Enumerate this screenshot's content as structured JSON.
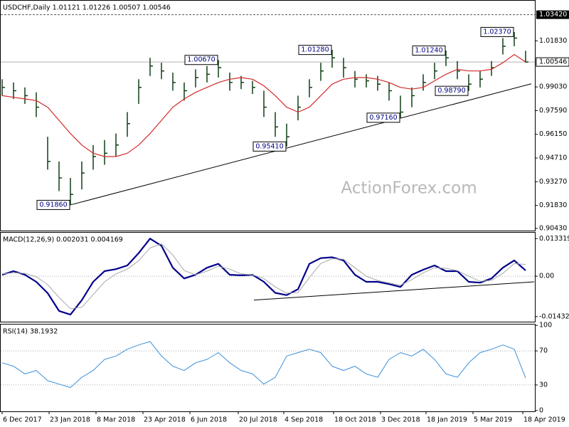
{
  "chart_data": [
    {
      "type": "hlc",
      "title": "USDCHF,Daily 1.01121 1.01226 1.00507 1.00546",
      "watermark": "ActionForex.com",
      "color": "#0f3f14",
      "x": [
        0,
        8,
        16,
        24,
        32,
        40,
        48,
        56,
        64,
        72,
        80,
        88,
        96,
        104,
        112,
        120,
        128,
        136,
        144,
        152,
        160,
        168,
        176,
        184,
        192,
        200,
        208,
        216,
        224,
        232,
        240,
        248,
        256,
        264,
        272,
        280,
        288,
        296,
        304,
        312,
        320,
        328,
        336,
        344,
        352,
        360,
        368
      ],
      "high": [
        0.995,
        0.993,
        0.99,
        0.987,
        0.96,
        0.945,
        0.935,
        0.945,
        0.955,
        0.958,
        0.962,
        0.975,
        0.995,
        1.008,
        1.005,
        0.999,
        0.993,
        1.001,
        1.003,
        1.0067,
        0.999,
        0.997,
        0.994,
        0.988,
        0.975,
        0.968,
        0.985,
        0.995,
        1.005,
        1.0128,
        1.008,
        1.0,
        0.998,
        0.997,
        0.993,
        0.985,
        0.99,
        0.998,
        1.005,
        1.0124,
        1.006,
        0.998,
        1.0,
        1.006,
        1.02,
        1.0237,
        1.01226
      ],
      "low": [
        0.985,
        0.983,
        0.98,
        0.972,
        0.94,
        0.927,
        0.9186,
        0.928,
        0.94,
        0.943,
        0.948,
        0.96,
        0.98,
        0.997,
        0.995,
        0.988,
        0.982,
        0.99,
        0.993,
        0.996,
        0.988,
        0.989,
        0.986,
        0.972,
        0.96,
        0.9541,
        0.97,
        0.984,
        0.994,
        1.002,
        0.996,
        0.99,
        0.99,
        0.988,
        0.982,
        0.9716,
        0.978,
        0.988,
        0.995,
        1.003,
        0.995,
        0.9879,
        0.99,
        0.997,
        1.01,
        1.015,
        1.00507
      ],
      "close": [
        0.99,
        0.988,
        0.985,
        0.978,
        0.945,
        0.935,
        0.925,
        0.938,
        0.948,
        0.95,
        0.955,
        0.968,
        0.99,
        1.003,
        1.0,
        0.993,
        0.988,
        0.996,
        0.998,
        1.002,
        0.993,
        0.993,
        0.99,
        0.978,
        0.966,
        0.96,
        0.978,
        0.99,
        1.0,
        1.008,
        1.002,
        0.995,
        0.994,
        0.992,
        0.988,
        0.975,
        0.985,
        0.993,
        1.0,
        1.008,
        1.0,
        0.992,
        0.995,
        1.002,
        1.015,
        1.02,
        1.00546
      ],
      "series": [
        {
          "color": "#d42a2a",
          "values": [
            0.985,
            0.984,
            0.983,
            0.982,
            0.978,
            0.97,
            0.962,
            0.955,
            0.95,
            0.948,
            0.948,
            0.95,
            0.955,
            0.962,
            0.97,
            0.978,
            0.983,
            0.987,
            0.99,
            0.993,
            0.995,
            0.996,
            0.995,
            0.991,
            0.985,
            0.978,
            0.975,
            0.978,
            0.985,
            0.992,
            0.995,
            0.996,
            0.996,
            0.995,
            0.993,
            0.99,
            0.989,
            0.99,
            0.994,
            0.998,
            1.001,
            1.0,
            1.0,
            1.001,
            1.005,
            1.01,
            1.0055
          ]
        }
      ],
      "xlim": [
        -1.5,
        374.5
      ],
      "xticks": [
        {
          "value": 0,
          "label": "6 Dec 2017"
        },
        {
          "value": 33,
          "label": "23 Jan 2018"
        },
        {
          "value": 66,
          "label": "8 Mar 2018"
        },
        {
          "value": 99,
          "label": "23 Apr 2018"
        },
        {
          "value": 132,
          "label": "6 Jun 2018"
        },
        {
          "value": 166,
          "label": "20 Jul 2018"
        },
        {
          "value": 198,
          "label": "4 Sep 2018"
        },
        {
          "value": 233,
          "label": "18 Oct 2018"
        },
        {
          "value": 266,
          "label": "3 Dec 2018"
        },
        {
          "value": 298,
          "label": "18 Jan 2019"
        },
        {
          "value": 331,
          "label": "5 Mar 2019"
        },
        {
          "value": 366,
          "label": "18 Apr 2019"
        }
      ],
      "ylim": [
        0.903,
        1.0427
      ],
      "yticks": [
        {
          "value": 1.0183,
          "label": "1.01830"
        },
        {
          "value": 0.9903,
          "label": "0.99030"
        },
        {
          "value": 0.9759,
          "label": "0.97590"
        },
        {
          "value": 0.9615,
          "label": "0.96150"
        },
        {
          "value": 0.9471,
          "label": "0.94710"
        },
        {
          "value": 0.9327,
          "label": "0.93270"
        },
        {
          "value": 0.9183,
          "label": "0.91830"
        },
        {
          "value": 0.9043,
          "label": "0.90430"
        }
      ],
      "hline": {
        "value": 1.0342,
        "label": "1.03420"
      },
      "current": {
        "value": 1.00546,
        "label": "1.00546"
      },
      "trendlines": [
        {
          "x": [
            48,
            372
          ],
          "y": [
            0.9186,
            0.9922
          ]
        }
      ],
      "annotations": [
        {
          "x": 48,
          "value": 0.9186,
          "label": "0.91860"
        },
        {
          "x": 152,
          "value": 1.0067,
          "label": "1.00670"
        },
        {
          "x": 200,
          "value": 0.9541,
          "label": "0.95410"
        },
        {
          "x": 232,
          "value": 1.0128,
          "label": "1.01280"
        },
        {
          "x": 280,
          "value": 0.9716,
          "label": "0.97160"
        },
        {
          "x": 312,
          "value": 1.0124,
          "label": "1.01240"
        },
        {
          "x": 328,
          "value": 0.9879,
          "label": "0.98790"
        },
        {
          "x": 360,
          "value": 1.0237,
          "label": "1.02370"
        }
      ]
    },
    {
      "type": "line",
      "title": "MACD(12,26,9) 0.002031 0.004169",
      "series": [
        {
          "color": "#00008b",
          "width": 2.2,
          "values": [
            0.0005,
            0.0018,
            0.0005,
            -0.002,
            -0.006,
            -0.0123,
            -0.0136,
            -0.0085,
            -0.002,
            0.0018,
            0.0025,
            0.0038,
            0.0082,
            0.0133,
            0.0108,
            0.003,
            -0.0008,
            0.0005,
            0.003,
            0.0044,
            0.0005,
            0.0003,
            0.0005,
            -0.002,
            -0.0059,
            -0.0067,
            -0.0046,
            0.0044,
            0.0064,
            0.0067,
            0.0056,
            0.0005,
            -0.002,
            -0.002,
            -0.0028,
            -0.0038,
            0.0005,
            0.0023,
            0.0038,
            0.0018,
            0.0018,
            -0.002,
            -0.0023,
            -0.0008,
            0.003,
            0.0056,
            0.002031
          ]
        },
        {
          "color": "#a8a8a8",
          "width": 1,
          "values": [
            0.0008,
            0.0012,
            0.001,
            -0.0002,
            -0.003,
            -0.0075,
            -0.0115,
            -0.011,
            -0.0065,
            -0.002,
            0.0008,
            0.0025,
            0.0055,
            0.01,
            0.0115,
            0.0075,
            0.002,
            0.0005,
            0.0018,
            0.0035,
            0.0025,
            0.0008,
            0.0005,
            -0.0008,
            -0.0038,
            -0.006,
            -0.0058,
            -0.0005,
            0.0045,
            0.0062,
            0.006,
            0.003,
            0.0,
            -0.0015,
            -0.0024,
            -0.0032,
            -0.0012,
            0.0012,
            0.003,
            0.0028,
            0.002,
            0.0,
            -0.0018,
            -0.0015,
            0.001,
            0.0045,
            0.004169
          ]
        }
      ],
      "ylim": [
        -0.0161,
        0.0154
      ],
      "yticks": [
        {
          "value": 0.013319,
          "label": "0.013319"
        },
        {
          "value": 0,
          "label": "0.00"
        },
        {
          "value": -0.014323,
          "label": "-0.014323"
        }
      ],
      "levels": [
        0
      ],
      "trendlines": [
        {
          "x": [
            177,
            374
          ],
          "y": [
            -0.00845,
            -0.002
          ]
        }
      ]
    },
    {
      "type": "line",
      "title": "RSI(14) 38.1932",
      "series": [
        {
          "color": "#3a8fd8",
          "width": 1,
          "values": [
            56,
            52,
            43,
            47,
            35,
            31,
            27,
            39,
            47,
            60,
            64,
            72,
            77,
            81,
            64,
            52,
            47,
            56,
            60,
            68,
            56,
            47,
            43,
            31,
            39,
            64,
            68,
            72,
            68,
            52,
            47,
            52,
            43,
            39,
            60,
            68,
            64,
            72,
            60,
            43,
            39,
            56,
            68,
            72,
            77,
            72,
            38.1932
          ]
        }
      ],
      "ylim": [
        -1,
        101
      ],
      "yticks": [
        100,
        70,
        30,
        0
      ],
      "levels": [
        30,
        70
      ]
    }
  ]
}
